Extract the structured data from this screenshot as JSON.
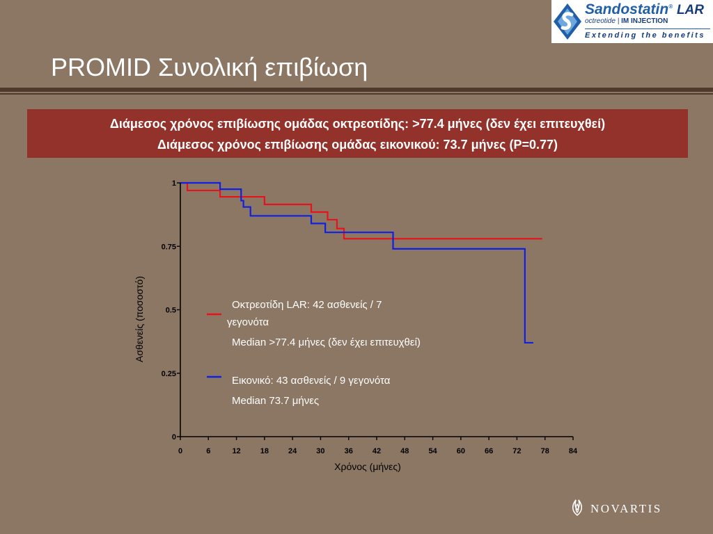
{
  "logo": {
    "brand": "Sandostatin",
    "brand_suffix": "LAR",
    "generic": "octreotide",
    "form": "IM INJECTION",
    "tagline": "Extending the benefits"
  },
  "title": "PROMID Συνολική επιβίωση",
  "banner": {
    "line1": "Διάμεσος χρόνος επιβίωσης ομάδας οκτρεοτίδης: >77.4 μήνες (δεν έχει επιτευχθεί)",
    "line2": "Διάμεσος χρόνος επιβίωσης ομάδας εικονικού: 73.7 μήνες (P=0.77)"
  },
  "legend": {
    "octreotide_line1": "Οκτρεοτίδη LAR: 42 ασθενείς / 7",
    "octreotide_line2": "γεγονότα",
    "octreotide_median": "Median >77.4 μήνες (δεν έχει επιτευχθεί)",
    "placebo_line1": "Εικονικό: 43  ασθενείς / 9 γεγονότα",
    "placebo_median": "Median 73.7 μήνες"
  },
  "footer": {
    "company": "NOVARTIS"
  },
  "colors": {
    "background": "#8c7765",
    "banner": "#93322a",
    "octreotide": "#e8121a",
    "placebo": "#1020e0",
    "axis": "#000000"
  },
  "chart_data": {
    "type": "line",
    "step": true,
    "xlabel": "Χρόνος (μήνες)",
    "ylabel": "Ασθενείς (ποσοστό)",
    "xlim": [
      0,
      84
    ],
    "ylim": [
      0,
      1
    ],
    "xticks": [
      0,
      6,
      12,
      18,
      24,
      30,
      36,
      42,
      48,
      54,
      60,
      66,
      72,
      78,
      84
    ],
    "yticks": [
      0,
      0.25,
      0.5,
      0.75,
      1
    ],
    "ytick_labels": [
      "0",
      "0.25",
      "0.5",
      "0.75",
      "1"
    ],
    "grid": false,
    "series": [
      {
        "key": "octreotide",
        "color": "#e8121a",
        "x": [
          0,
          1.5,
          8.5,
          18,
          28,
          31.5,
          33.5,
          35,
          77.4
        ],
        "y": [
          1,
          0.97,
          0.945,
          0.915,
          0.885,
          0.855,
          0.82,
          0.78,
          0.78
        ]
      },
      {
        "key": "placebo",
        "color": "#1020e0",
        "x": [
          0,
          8.5,
          13,
          13.5,
          15,
          28,
          31,
          45.5,
          73.7,
          75.5
        ],
        "y": [
          1,
          0.975,
          0.93,
          0.905,
          0.87,
          0.84,
          0.805,
          0.74,
          0.37,
          0.37
        ]
      }
    ]
  }
}
